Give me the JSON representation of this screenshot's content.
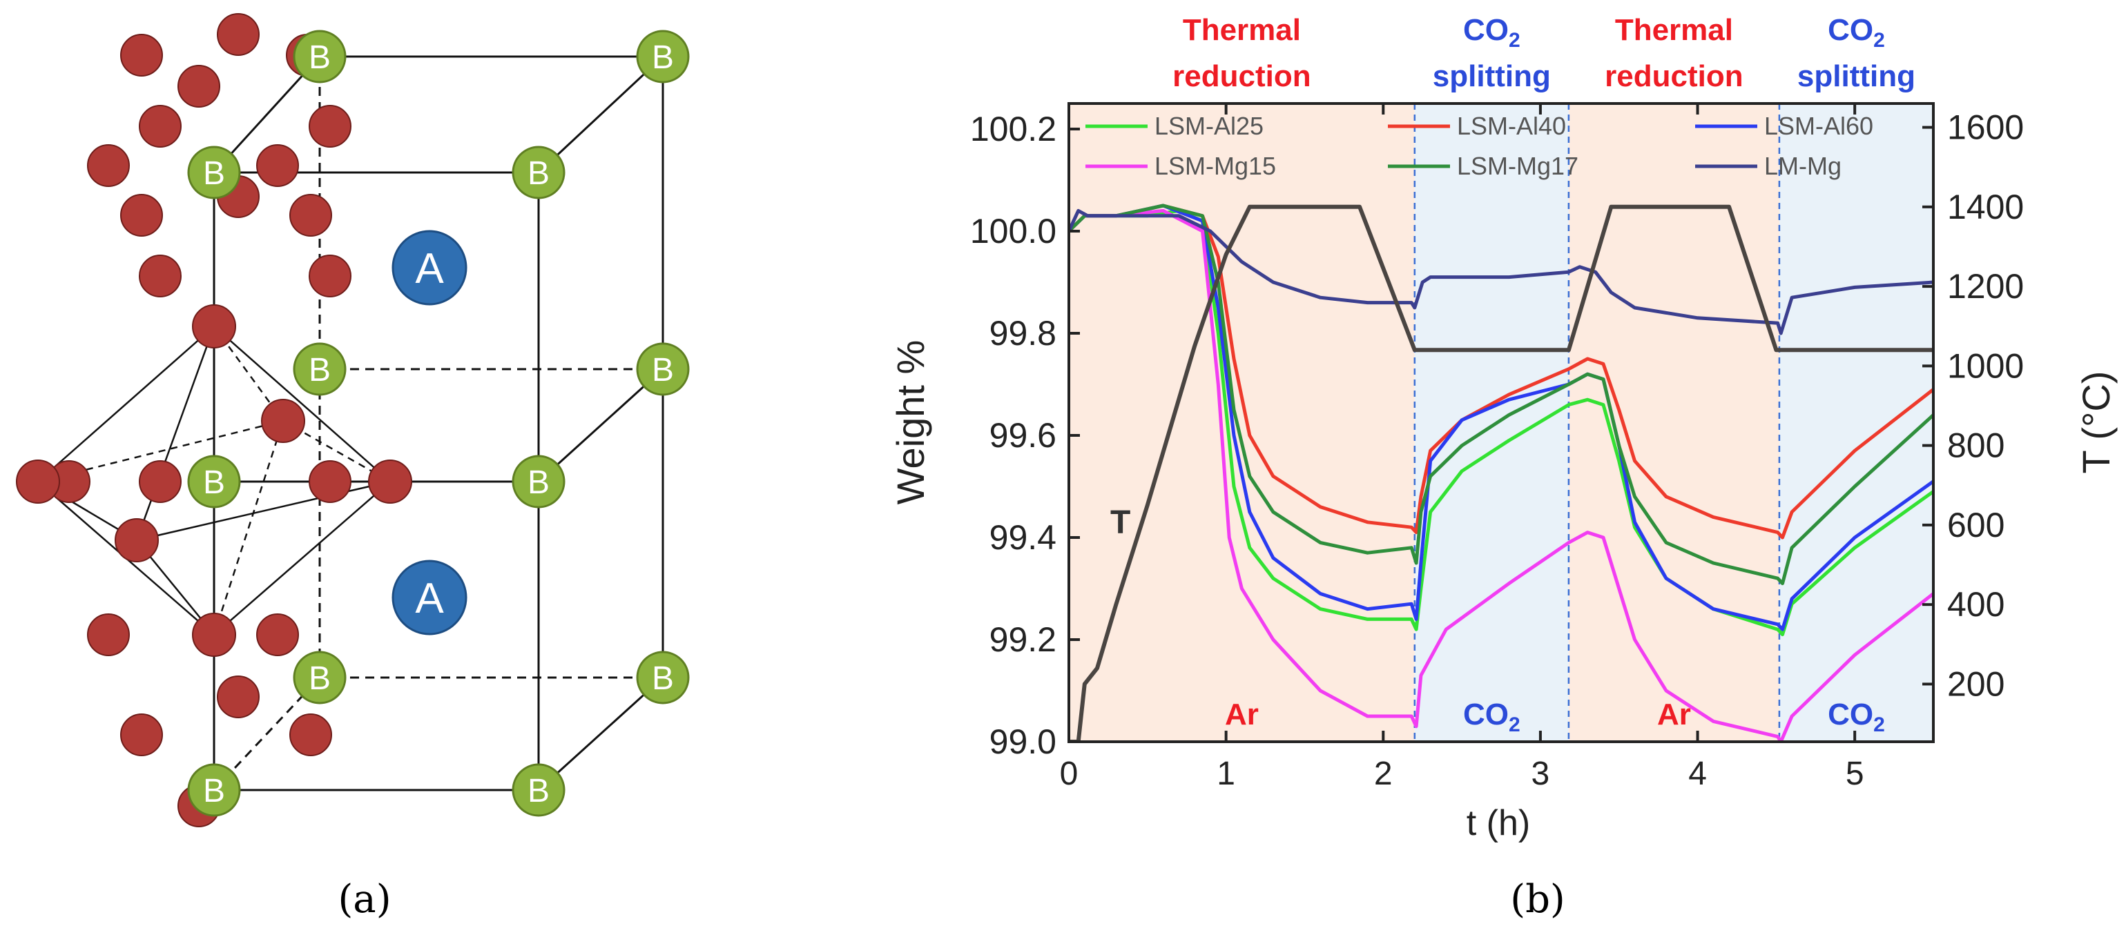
{
  "panel_a": {
    "caption": "(a)",
    "label_a": "A",
    "label_b": "B",
    "colors": {
      "b_site": "#8ab23c",
      "a_site": "#2f6fb2",
      "oxygen": "#b03a36"
    }
  },
  "panel_b": {
    "caption": "(b)",
    "phases": [
      {
        "header1": "Thermal",
        "header2": "reduction",
        "gas": "Ar",
        "header_color": "#ee1c24",
        "gas_color": "#ee1c24",
        "fill": "#fdebe0",
        "start": 0,
        "end": 2.2
      },
      {
        "header1": "CO",
        "sub": "2",
        "header2": "splitting",
        "gas": "CO",
        "gas_sub": "2",
        "header_color": "#2b4bd9",
        "gas_color": "#2b4bd9",
        "fill": "#e9f2f9",
        "start": 2.2,
        "end": 3.18
      },
      {
        "header1": "Thermal",
        "header2": "reduction",
        "gas": "Ar",
        "header_color": "#ee1c24",
        "gas_color": "#ee1c24",
        "fill": "#fdebe0",
        "start": 3.18,
        "end": 4.52
      },
      {
        "header1": "CO",
        "sub": "2",
        "header2": "splitting",
        "gas": "CO",
        "gas_sub": "2",
        "header_color": "#2b4bd9",
        "gas_color": "#2b4bd9",
        "fill": "#e9f2f9",
        "start": 4.52,
        "end": 5.5
      }
    ],
    "t_label": "T"
  },
  "chart_data": {
    "type": "line",
    "xlabel": "t (h)",
    "ylabel": "Weight %",
    "y2label": "T (°C)",
    "xlim": [
      0,
      5.5
    ],
    "ylim": [
      99.0,
      100.25
    ],
    "y2lim": [
      55,
      1660
    ],
    "xticks": [
      "0",
      "1",
      "2",
      "3",
      "4",
      "5"
    ],
    "xtick_values": [
      0,
      1,
      2,
      3,
      4,
      5
    ],
    "yticks": [
      "99.0",
      "99.2",
      "99.4",
      "99.6",
      "99.8",
      "100.0",
      "100.2"
    ],
    "ytick_values": [
      99.0,
      99.2,
      99.4,
      99.6,
      99.8,
      100.0,
      100.2
    ],
    "y2ticks": [
      "200",
      "400",
      "600",
      "800",
      "1000",
      "1200",
      "1400",
      "1600"
    ],
    "y2tick_values": [
      200,
      400,
      600,
      800,
      1000,
      1200,
      1400,
      1600
    ],
    "series": [
      {
        "name": "LSM-Al25",
        "color": "#33e133",
        "points": [
          [
            0,
            100.0
          ],
          [
            0.1,
            100.03
          ],
          [
            0.3,
            100.03
          ],
          [
            0.5,
            100.03
          ],
          [
            0.7,
            100.04
          ],
          [
            0.85,
            100.02
          ],
          [
            0.95,
            99.8
          ],
          [
            1.05,
            99.5
          ],
          [
            1.15,
            99.38
          ],
          [
            1.3,
            99.32
          ],
          [
            1.6,
            99.26
          ],
          [
            1.9,
            99.24
          ],
          [
            2.18,
            99.24
          ],
          [
            2.21,
            99.22
          ],
          [
            2.24,
            99.3
          ],
          [
            2.3,
            99.45
          ],
          [
            2.5,
            99.53
          ],
          [
            2.8,
            99.59
          ],
          [
            3.18,
            99.66
          ],
          [
            3.3,
            99.67
          ],
          [
            3.4,
            99.66
          ],
          [
            3.5,
            99.55
          ],
          [
            3.6,
            99.42
          ],
          [
            3.8,
            99.32
          ],
          [
            4.1,
            99.26
          ],
          [
            4.51,
            99.22
          ],
          [
            4.54,
            99.21
          ],
          [
            4.6,
            99.27
          ],
          [
            5.0,
            99.38
          ],
          [
            5.5,
            99.49
          ]
        ]
      },
      {
        "name": "LSM-Al40",
        "color": "#ee3a2c",
        "points": [
          [
            0,
            100.0
          ],
          [
            0.1,
            100.03
          ],
          [
            0.3,
            100.03
          ],
          [
            0.6,
            100.05
          ],
          [
            0.85,
            100.03
          ],
          [
            0.95,
            99.95
          ],
          [
            1.05,
            99.75
          ],
          [
            1.15,
            99.6
          ],
          [
            1.3,
            99.52
          ],
          [
            1.6,
            99.46
          ],
          [
            1.9,
            99.43
          ],
          [
            2.18,
            99.42
          ],
          [
            2.21,
            99.41
          ],
          [
            2.24,
            99.48
          ],
          [
            2.3,
            99.57
          ],
          [
            2.5,
            99.63
          ],
          [
            2.8,
            99.68
          ],
          [
            3.18,
            99.73
          ],
          [
            3.3,
            99.75
          ],
          [
            3.4,
            99.74
          ],
          [
            3.5,
            99.65
          ],
          [
            3.6,
            99.55
          ],
          [
            3.8,
            99.48
          ],
          [
            4.1,
            99.44
          ],
          [
            4.51,
            99.41
          ],
          [
            4.54,
            99.4
          ],
          [
            4.6,
            99.45
          ],
          [
            5.0,
            99.57
          ],
          [
            5.5,
            99.69
          ]
        ]
      },
      {
        "name": "LSM-Al60",
        "color": "#2a3bf0",
        "points": [
          [
            0,
            100.0
          ],
          [
            0.1,
            100.03
          ],
          [
            0.3,
            100.03
          ],
          [
            0.6,
            100.05
          ],
          [
            0.85,
            100.02
          ],
          [
            0.95,
            99.85
          ],
          [
            1.05,
            99.6
          ],
          [
            1.15,
            99.45
          ],
          [
            1.3,
            99.36
          ],
          [
            1.6,
            99.29
          ],
          [
            1.9,
            99.26
          ],
          [
            2.18,
            99.27
          ],
          [
            2.21,
            99.24
          ],
          [
            2.24,
            99.35
          ],
          [
            2.3,
            99.55
          ],
          [
            2.5,
            99.63
          ],
          [
            2.8,
            99.67
          ],
          [
            3.18,
            99.7
          ],
          [
            3.3,
            99.72
          ],
          [
            3.4,
            99.71
          ],
          [
            3.5,
            99.58
          ],
          [
            3.6,
            99.43
          ],
          [
            3.8,
            99.32
          ],
          [
            4.1,
            99.26
          ],
          [
            4.51,
            99.23
          ],
          [
            4.54,
            99.22
          ],
          [
            4.6,
            99.28
          ],
          [
            5.0,
            99.4
          ],
          [
            5.5,
            99.51
          ]
        ]
      },
      {
        "name": "LSM-Mg15",
        "color": "#f23ef2",
        "points": [
          [
            0,
            100.0
          ],
          [
            0.1,
            100.03
          ],
          [
            0.3,
            100.03
          ],
          [
            0.6,
            100.04
          ],
          [
            0.85,
            100.0
          ],
          [
            0.95,
            99.7
          ],
          [
            1.02,
            99.4
          ],
          [
            1.1,
            99.3
          ],
          [
            1.3,
            99.2
          ],
          [
            1.6,
            99.1
          ],
          [
            1.9,
            99.05
          ],
          [
            2.18,
            99.05
          ],
          [
            2.21,
            99.03
          ],
          [
            2.24,
            99.13
          ],
          [
            2.4,
            99.22
          ],
          [
            2.8,
            99.31
          ],
          [
            3.18,
            99.39
          ],
          [
            3.3,
            99.41
          ],
          [
            3.4,
            99.4
          ],
          [
            3.5,
            99.3
          ],
          [
            3.6,
            99.2
          ],
          [
            3.8,
            99.1
          ],
          [
            4.1,
            99.04
          ],
          [
            4.51,
            99.01
          ],
          [
            4.53,
            99.0
          ],
          [
            4.6,
            99.05
          ],
          [
            5.0,
            99.17
          ],
          [
            5.5,
            99.29
          ]
        ]
      },
      {
        "name": "LSM-Mg17",
        "color": "#2f8f3c",
        "points": [
          [
            0,
            100.0
          ],
          [
            0.1,
            100.03
          ],
          [
            0.3,
            100.03
          ],
          [
            0.6,
            100.05
          ],
          [
            0.85,
            100.03
          ],
          [
            0.95,
            99.9
          ],
          [
            1.05,
            99.65
          ],
          [
            1.15,
            99.52
          ],
          [
            1.3,
            99.45
          ],
          [
            1.6,
            99.39
          ],
          [
            1.9,
            99.37
          ],
          [
            2.18,
            99.38
          ],
          [
            2.21,
            99.35
          ],
          [
            2.24,
            99.45
          ],
          [
            2.3,
            99.52
          ],
          [
            2.5,
            99.58
          ],
          [
            2.8,
            99.64
          ],
          [
            3.18,
            99.7
          ],
          [
            3.3,
            99.72
          ],
          [
            3.4,
            99.71
          ],
          [
            3.5,
            99.58
          ],
          [
            3.6,
            99.48
          ],
          [
            3.8,
            99.39
          ],
          [
            4.1,
            99.35
          ],
          [
            4.51,
            99.32
          ],
          [
            4.54,
            99.31
          ],
          [
            4.6,
            99.38
          ],
          [
            5.0,
            99.5
          ],
          [
            5.5,
            99.64
          ]
        ]
      },
      {
        "name": "LM-Mg",
        "color": "#3b3f8f",
        "points": [
          [
            0,
            100.0
          ],
          [
            0.06,
            100.04
          ],
          [
            0.12,
            100.03
          ],
          [
            0.4,
            100.03
          ],
          [
            0.7,
            100.03
          ],
          [
            0.9,
            100.0
          ],
          [
            1.1,
            99.94
          ],
          [
            1.3,
            99.9
          ],
          [
            1.6,
            99.87
          ],
          [
            1.9,
            99.86
          ],
          [
            2.18,
            99.86
          ],
          [
            2.2,
            99.85
          ],
          [
            2.25,
            99.9
          ],
          [
            2.3,
            99.91
          ],
          [
            2.8,
            99.91
          ],
          [
            3.18,
            99.92
          ],
          [
            3.25,
            99.93
          ],
          [
            3.35,
            99.92
          ],
          [
            3.45,
            99.88
          ],
          [
            3.6,
            99.85
          ],
          [
            4.0,
            99.83
          ],
          [
            4.51,
            99.82
          ],
          [
            4.53,
            99.8
          ],
          [
            4.6,
            99.87
          ],
          [
            5.0,
            99.89
          ],
          [
            5.5,
            99.9
          ]
        ]
      },
      {
        "name": "T",
        "color": "#4a4542",
        "axis": "right",
        "points": [
          [
            0,
            55
          ],
          [
            0.06,
            55
          ],
          [
            0.1,
            200
          ],
          [
            0.18,
            240
          ],
          [
            0.3,
            400
          ],
          [
            0.5,
            650
          ],
          [
            0.8,
            1050
          ],
          [
            1.0,
            1280
          ],
          [
            1.15,
            1400
          ],
          [
            1.85,
            1400
          ],
          [
            2.2,
            1040
          ],
          [
            3.18,
            1040
          ],
          [
            3.45,
            1400
          ],
          [
            4.2,
            1400
          ],
          [
            4.5,
            1040
          ],
          [
            5.5,
            1040
          ]
        ]
      }
    ]
  }
}
